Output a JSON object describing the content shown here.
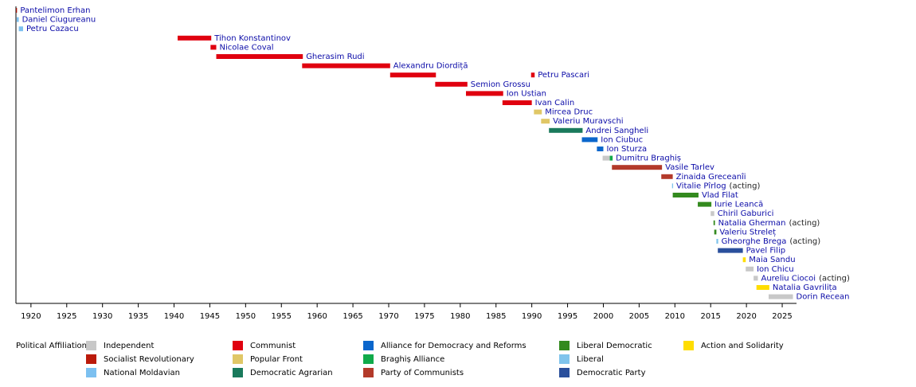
{
  "chart_data": {
    "type": "timeline",
    "xlim": [
      1917.9,
      2027
    ],
    "xticks": [
      1920,
      1925,
      1930,
      1935,
      1940,
      1945,
      1950,
      1955,
      1960,
      1965,
      1970,
      1975,
      1980,
      1985,
      1990,
      1995,
      2000,
      2005,
      2010,
      2015,
      2020,
      2025
    ],
    "legend_title": "Political Affiliation:",
    "parties": [
      {
        "name": "Independent",
        "color": "#c8c8c8"
      },
      {
        "name": "Socialist Revolutionary",
        "color": "#bb1a0a"
      },
      {
        "name": "National Moldavian",
        "color": "#7cc0f0"
      },
      {
        "name": "Communist",
        "color": "#e0000f"
      },
      {
        "name": "Popular Front",
        "color": "#e0c766"
      },
      {
        "name": "Democratic Agrarian",
        "color": "#1a7a5c"
      },
      {
        "name": "Alliance for Democracy and Reforms",
        "color": "#0a66cc"
      },
      {
        "name": "Braghiș Alliance",
        "color": "#10aa4a"
      },
      {
        "name": "Party of Communists",
        "color": "#b33a2a"
      },
      {
        "name": "Liberal Democratic",
        "color": "#338a1e"
      },
      {
        "name": "Liberal",
        "color": "#80c4ec"
      },
      {
        "name": "Democratic Party",
        "color": "#2a4f9c"
      },
      {
        "name": "Action and Solidarity",
        "color": "#ffdd00"
      }
    ],
    "rows": [
      {
        "name": "Pantelimon Erhan",
        "periods": [
          {
            "start": 1917.92,
            "end": 1918.05,
            "color": "#bb1a0a"
          }
        ]
      },
      {
        "name": "Daniel Ciugureanu",
        "periods": [
          {
            "start": 1918.0,
            "end": 1918.3,
            "color": "#7cc0f0"
          }
        ]
      },
      {
        "name": "Petru Cazacu",
        "periods": [
          {
            "start": 1918.3,
            "end": 1918.9,
            "color": "#7cc0f0"
          }
        ]
      },
      {
        "name": "Tihon Konstantinov",
        "periods": [
          {
            "start": 1940.5,
            "end": 1945.2,
            "color": "#e0000f"
          }
        ]
      },
      {
        "name": "Nicolae Coval",
        "periods": [
          {
            "start": 1945.1,
            "end": 1945.9,
            "color": "#e0000f"
          }
        ]
      },
      {
        "name": "Gherasim Rudi",
        "periods": [
          {
            "start": 1945.9,
            "end": 1958.0,
            "color": "#e0000f"
          }
        ]
      },
      {
        "name": "Alexandru Diordiță",
        "periods": [
          {
            "start": 1957.9,
            "end": 1970.2,
            "color": "#e0000f"
          }
        ]
      },
      {
        "name": "Petru Pascari",
        "periods": [
          {
            "start": 1970.2,
            "end": 1976.6,
            "color": "#e0000f"
          },
          {
            "start": 1989.9,
            "end": 1990.4,
            "color": "#e0000f"
          }
        ]
      },
      {
        "name": "Semion Grossu",
        "periods": [
          {
            "start": 1976.5,
            "end": 1981.0,
            "color": "#e0000f"
          }
        ]
      },
      {
        "name": "Ion Ustian",
        "periods": [
          {
            "start": 1980.8,
            "end": 1986.0,
            "color": "#e0000f"
          }
        ]
      },
      {
        "name": "Ivan Calin",
        "periods": [
          {
            "start": 1985.9,
            "end": 1990.0,
            "color": "#e0000f"
          }
        ]
      },
      {
        "name": "Mircea Druc",
        "periods": [
          {
            "start": 1990.3,
            "end": 1991.4,
            "color": "#e0c766"
          }
        ]
      },
      {
        "name": "Valeriu Muravschi",
        "periods": [
          {
            "start": 1991.3,
            "end": 1992.5,
            "color": "#e0c766"
          }
        ]
      },
      {
        "name": "Andrei Sangheli",
        "periods": [
          {
            "start": 1992.4,
            "end": 1997.1,
            "color": "#1a7a5c"
          }
        ]
      },
      {
        "name": "Ion Ciubuc",
        "periods": [
          {
            "start": 1997.0,
            "end": 1999.2,
            "color": "#0a66cc"
          }
        ]
      },
      {
        "name": "Ion Sturza",
        "periods": [
          {
            "start": 1999.1,
            "end": 2000.0,
            "color": "#0a66cc"
          }
        ]
      },
      {
        "name": "Dumitru Braghiș",
        "periods": [
          {
            "start": 1999.9,
            "end": 2000.9,
            "color": "#c8c8c8"
          },
          {
            "start": 2000.9,
            "end": 2001.3,
            "color": "#10aa4a"
          }
        ]
      },
      {
        "name": "Vasile Tarlev",
        "periods": [
          {
            "start": 2001.2,
            "end": 2008.2,
            "color": "#b33a2a"
          }
        ]
      },
      {
        "name": "Zinaida Greceanîi",
        "periods": [
          {
            "start": 2008.1,
            "end": 2009.7,
            "color": "#b33a2a"
          }
        ]
      },
      {
        "name": "Vitalie Pîrlog",
        "note": "(acting)",
        "periods": [
          {
            "start": 2009.6,
            "end": 2009.75,
            "color": "#80c4ec"
          }
        ]
      },
      {
        "name": "Vlad Filat",
        "periods": [
          {
            "start": 2009.7,
            "end": 2013.3,
            "color": "#338a1e"
          }
        ]
      },
      {
        "name": "Iurie Leancă",
        "periods": [
          {
            "start": 2013.2,
            "end": 2015.1,
            "color": "#338a1e"
          }
        ]
      },
      {
        "name": "Chiril Gaburici",
        "periods": [
          {
            "start": 2015.0,
            "end": 2015.5,
            "color": "#c8c8c8"
          }
        ]
      },
      {
        "name": "Natalia Gherman",
        "note": "(acting)",
        "periods": [
          {
            "start": 2015.4,
            "end": 2015.6,
            "color": "#338a1e"
          }
        ]
      },
      {
        "name": "Valeriu Streleț",
        "periods": [
          {
            "start": 2015.5,
            "end": 2015.8,
            "color": "#338a1e"
          }
        ]
      },
      {
        "name": "Gheorghe Brega",
        "note": "(acting)",
        "periods": [
          {
            "start": 2015.8,
            "end": 2016.05,
            "color": "#80c4ec"
          }
        ]
      },
      {
        "name": "Pavel Filip",
        "periods": [
          {
            "start": 2016.0,
            "end": 2019.5,
            "color": "#2a4f9c"
          }
        ]
      },
      {
        "name": "Maia Sandu",
        "periods": [
          {
            "start": 2019.5,
            "end": 2019.9,
            "color": "#ffdd00"
          }
        ]
      },
      {
        "name": "Ion Chicu",
        "periods": [
          {
            "start": 2019.9,
            "end": 2021.0,
            "color": "#c8c8c8"
          }
        ]
      },
      {
        "name": "Aureliu Ciocoi",
        "note": "(acting)",
        "periods": [
          {
            "start": 2021.0,
            "end": 2021.6,
            "color": "#c8c8c8"
          }
        ]
      },
      {
        "name": "Natalia Gavrilița",
        "periods": [
          {
            "start": 2021.4,
            "end": 2023.2,
            "color": "#ffdd00"
          }
        ]
      },
      {
        "name": "Dorin Recean",
        "periods": [
          {
            "start": 2023.1,
            "end": 2026.5,
            "color": "#c8c8c8"
          }
        ]
      }
    ]
  }
}
